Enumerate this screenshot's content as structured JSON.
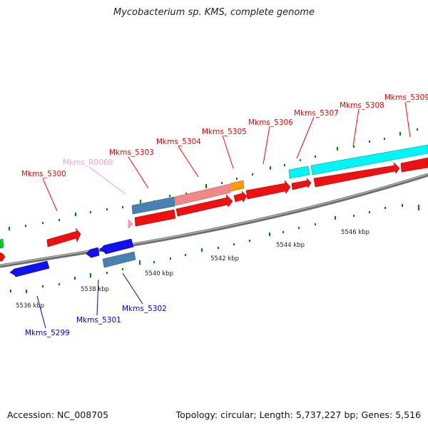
{
  "title": "Mycobacterium sp. KMS, complete genome",
  "footer": {
    "accession": "Accession: NC_008705",
    "summary": "Topology: circular; Length: 5,737,227 bp; Genes: 5,516"
  },
  "colors": {
    "forward_gene": "#ff0000",
    "reverse_gene": "#0000dd",
    "rna": "#f0a0c0",
    "cyan_gene": "#00ffff",
    "steel_gene": "#4682b4",
    "pink_gene": "#f08080",
    "orange_gene": "#ffa500",
    "green_gene": "#00cc33",
    "backbone": "#808080",
    "tick": "#008000"
  },
  "scale_labels": [
    "5536 kbp",
    "5538 kbp",
    "5540 kbp",
    "5542 kbp",
    "5544 kbp",
    "5546 kbp"
  ],
  "gene_labels": [
    {
      "text": "Mkms_5299",
      "strand": "reverse"
    },
    {
      "text": "Mkms_5300",
      "strand": "forward"
    },
    {
      "text": "Mkms_5301",
      "strand": "reverse"
    },
    {
      "text": "Mkms_5302",
      "strand": "reverse"
    },
    {
      "text": "Mkms_R0060",
      "strand": "rna"
    },
    {
      "text": "Mkms_5303",
      "strand": "forward"
    },
    {
      "text": "Mkms_5304",
      "strand": "forward"
    },
    {
      "text": "Mkms_5305",
      "strand": "forward"
    },
    {
      "text": "Mkms_5306",
      "strand": "forward"
    },
    {
      "text": "Mkms_5307",
      "strand": "forward"
    },
    {
      "text": "Mkms_5308",
      "strand": "forward"
    },
    {
      "text": "Mkms_5309",
      "strand": "forward"
    }
  ]
}
